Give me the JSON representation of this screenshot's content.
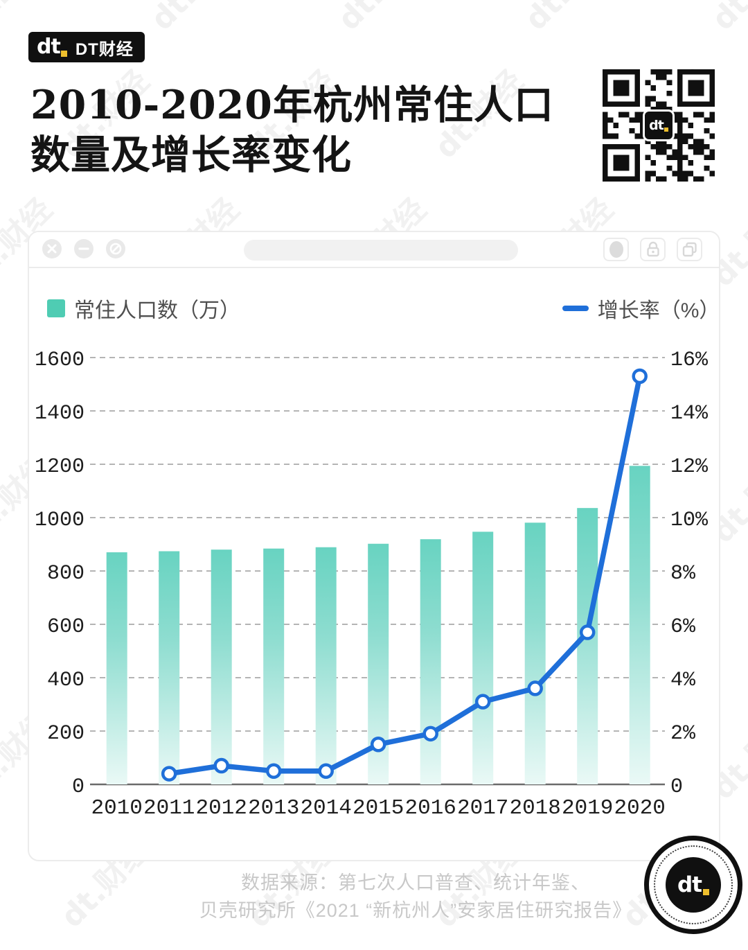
{
  "brand": {
    "mark": "dt",
    "name": "DT财经",
    "accent_yellow": "#eebf2d",
    "black": "#101010"
  },
  "title": {
    "line1": "2010-2020年杭州常住人口",
    "line2": "数量及增长率变化"
  },
  "legend": {
    "population": "常住人口数（万）",
    "growth": "增长率（%）"
  },
  "colors": {
    "bar_top": "#68d3c1",
    "bar_mid": "#9be1d6",
    "bar_bottom": "#eaf9f6",
    "line_blue": "#1f6fd9",
    "legend_teal": "#4fccb3",
    "grid_gray": "#b4b4b4"
  },
  "chart_data": {
    "type": "bar+line",
    "categories": [
      "2010",
      "2011",
      "2012",
      "2013",
      "2014",
      "2015",
      "2016",
      "2017",
      "2018",
      "2019",
      "2020"
    ],
    "series": [
      {
        "name": "常住人口数（万）",
        "type": "bar",
        "axis": "left",
        "values": [
          870,
          874,
          880,
          884,
          889,
          902,
          919,
          947,
          981,
          1036,
          1194
        ]
      },
      {
        "name": "增长率（%）",
        "type": "line",
        "axis": "right",
        "values": [
          null,
          0.4,
          0.7,
          0.5,
          0.5,
          1.5,
          1.9,
          3.1,
          3.6,
          5.7,
          15.3
        ]
      }
    ],
    "left_axis": {
      "min": 0,
      "max": 1600,
      "step": 200,
      "labels": [
        "0",
        "200",
        "400",
        "600",
        "800",
        "1000",
        "1200",
        "1400",
        "1600"
      ]
    },
    "right_axis": {
      "min": 0,
      "max": 16,
      "step": 2,
      "labels": [
        "0",
        "2%",
        "4%",
        "6%",
        "8%",
        "10%",
        "12%",
        "14%",
        "16%"
      ]
    },
    "grid": "dashed horizontal",
    "legend_position": "top"
  },
  "source": {
    "line1": "数据来源：第七次人口普查、统计年鉴、",
    "line2": "贝壳研究所《2021 “新杭州人”安家居住研究报告》"
  },
  "watermark": "dt.财经"
}
